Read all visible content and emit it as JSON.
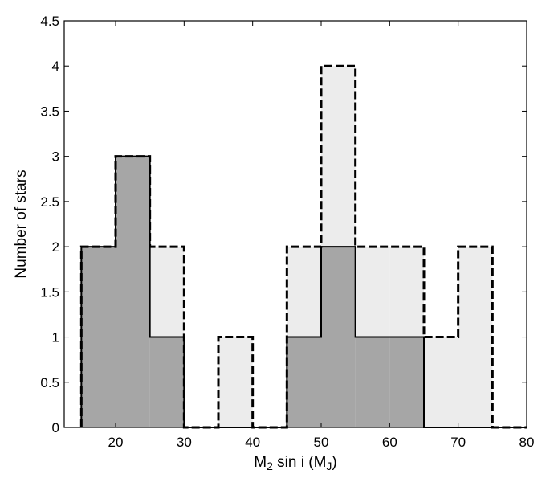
{
  "chart_data": {
    "type": "bar",
    "title": "",
    "ylabel": "Number of stars",
    "xlabel": {
      "parts": [
        {
          "text": "M",
          "style": "normal"
        },
        {
          "text": "2",
          "style": "sub"
        },
        {
          "text": " sin i  (M",
          "style": "normal"
        },
        {
          "text": "J",
          "style": "sub"
        },
        {
          "text": ")",
          "style": "normal"
        }
      ]
    },
    "xlim": [
      12.5,
      80
    ],
    "ylim": [
      0,
      4.5
    ],
    "xticks": [
      20,
      30,
      40,
      50,
      60,
      70,
      80
    ],
    "yticks": [
      0,
      0.5,
      1,
      1.5,
      2,
      2.5,
      3,
      3.5,
      4,
      4.5
    ],
    "bin_edges": [
      15,
      20,
      25,
      30,
      35,
      40,
      45,
      50,
      55,
      60,
      65,
      70,
      75,
      80
    ],
    "grid": false,
    "series": [
      {
        "style": "light-dashed",
        "fill": "#ececec",
        "stroke": "#000000",
        "values": [
          2,
          3,
          2,
          0,
          1,
          0,
          2,
          4,
          2,
          2,
          1,
          2,
          0
        ]
      },
      {
        "style": "dark-solid",
        "fill": "#a6a6a6",
        "stroke": "#000000",
        "values": [
          2,
          3,
          1,
          0,
          0,
          0,
          1,
          2,
          1,
          1,
          0,
          0,
          0
        ]
      }
    ]
  }
}
